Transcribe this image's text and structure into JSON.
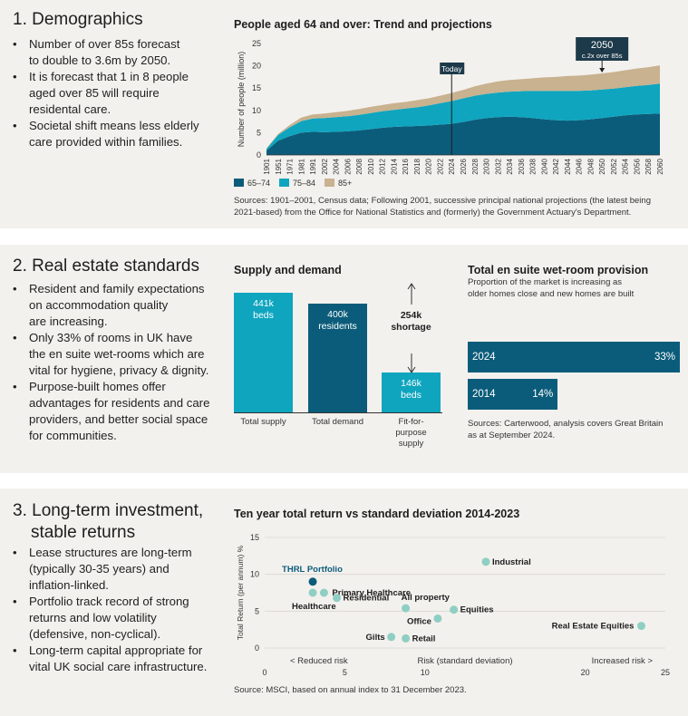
{
  "section1": {
    "title": "1. Demographics",
    "bullets": [
      "Number of over 85s forecast to double to 3.6m by 2050.",
      "It is forecast that 1 in 8 people aged over 85 will require residental care.",
      "Societal shift means less elderly care provided within families."
    ],
    "bullet_lines": [
      [
        "Number of over 85s forecast",
        "to double to 3.6m by 2050."
      ],
      [
        "It is forecast that 1 in 8 people",
        "aged over 85 will require",
        "residental care."
      ],
      [
        "Societal shift means less elderly",
        "care provided within families."
      ]
    ],
    "source": "Sources: 1901–2001, Census data; Following 2001, successive principal national projections (the latest being 2021-based) from the Office for National Statistics and (formerly) the Government Actuary's Department.",
    "source_lines": [
      "Sources: 1901–2001, Census data; Following 2001, successive principal national projections (the latest being",
      "2021-based) from the Office for National Statistics and (formerly) the Government Actuary's Department."
    ]
  },
  "section2": {
    "title": "2. Real estate standards",
    "bullets": [
      "Resident and family expectations on accommodation quality are increasing.",
      "Only 33% of rooms in UK have the en suite wet-rooms which are vital for hygiene, privacy & dignity.",
      "Purpose-built homes offer advantages for residents and care providers, and better social space for communities."
    ],
    "bullet_lines": [
      [
        "Resident and family expectations",
        "on accommodation quality",
        "are increasing."
      ],
      [
        "Only 33% of rooms in UK have",
        "the en suite wet-rooms which are",
        "vital for hygiene, privacy & dignity."
      ],
      [
        "Purpose-built homes offer",
        "advantages for residents and care",
        "providers, and better social space",
        "for communities."
      ]
    ]
  },
  "section3": {
    "title_lines": [
      "3. Long-term investment,",
      "stable returns"
    ],
    "bullets": [
      "Lease structures are long-term (typically 30-35 years) and inflation-linked.",
      "Portfolio track record of strong returns and low volatility (defensive, non-cyclical).",
      "Long-term capital appropriate for vital UK social care infrastructure."
    ],
    "bullet_lines": [
      [
        "Lease structures are long-term",
        "(typically 30-35 years) and",
        "inflation-linked."
      ],
      [
        "Portfolio track record of strong",
        "returns and low volatility",
        "(defensive, non-cyclical)."
      ],
      [
        "Long-term capital appropriate for",
        "vital UK social care infrastructure."
      ]
    ],
    "source": "Source: MSCI, based on annual index to 31 December 2023."
  },
  "colors": {
    "dark_teal": "#0b5c7a",
    "teal": "#0fa5bf",
    "tan": "#c8b28f",
    "mint": "#8fcfc3",
    "panel_bg": "#f3f1ee"
  },
  "chart_data": [
    {
      "type": "area",
      "title": "People aged 64 and over: Trend and projections",
      "ylabel": "Number of people (million)",
      "ylim": [
        0,
        25
      ],
      "yticks": [
        0,
        5,
        10,
        15,
        20,
        25
      ],
      "x": [
        "1901",
        "1951",
        "1971",
        "1981",
        "1991",
        "2002",
        "2004",
        "2006",
        "2008",
        "2010",
        "2012",
        "2014",
        "2016",
        "2018",
        "2020",
        "2022",
        "2024",
        "2026",
        "2028",
        "2030",
        "2032",
        "2034",
        "2036",
        "2038",
        "2040",
        "2042",
        "2044",
        "2046",
        "2048",
        "2050",
        "2052",
        "2054",
        "2056",
        "2058",
        "2060"
      ],
      "series": [
        {
          "name": "65–74",
          "values": [
            1.0,
            3.2,
            4.2,
            5.0,
            5.2,
            5.1,
            5.2,
            5.3,
            5.5,
            5.8,
            6.1,
            6.3,
            6.4,
            6.5,
            6.6,
            6.8,
            7.0,
            7.4,
            7.9,
            8.3,
            8.5,
            8.6,
            8.5,
            8.3,
            8.0,
            7.8,
            7.7,
            7.8,
            8.0,
            8.3,
            8.6,
            8.9,
            9.1,
            9.2,
            9.3
          ]
        },
        {
          "name": "75–84",
          "values": [
            0.4,
            1.3,
            2.0,
            2.6,
            3.0,
            3.2,
            3.3,
            3.4,
            3.5,
            3.6,
            3.7,
            3.8,
            4.0,
            4.2,
            4.5,
            4.8,
            5.1,
            5.3,
            5.4,
            5.4,
            5.5,
            5.6,
            5.8,
            6.1,
            6.4,
            6.6,
            6.7,
            6.6,
            6.5,
            6.4,
            6.3,
            6.3,
            6.4,
            6.5,
            6.7
          ]
        },
        {
          "name": "85+",
          "values": [
            0.1,
            0.2,
            0.5,
            0.8,
            0.9,
            1.0,
            1.1,
            1.2,
            1.3,
            1.4,
            1.4,
            1.5,
            1.5,
            1.6,
            1.6,
            1.7,
            1.8,
            1.9,
            2.1,
            2.3,
            2.5,
            2.6,
            2.7,
            2.8,
            3.0,
            3.1,
            3.3,
            3.4,
            3.5,
            3.6,
            3.7,
            3.8,
            3.9,
            4.0,
            4.1
          ]
        }
      ],
      "annotations": [
        {
          "x": "2024",
          "label": "Today"
        },
        {
          "x": "2050",
          "label": "2050",
          "sublabel": "c.2x over 85s"
        }
      ],
      "legend": "bottom-left"
    },
    {
      "type": "bar",
      "title": "Supply and demand",
      "categories": [
        "Total supply",
        "Total demand",
        "Fit-for-purpose supply"
      ],
      "category_lines": [
        [
          "Total supply"
        ],
        [
          "Total demand"
        ],
        [
          "Fit-for-",
          "purpose",
          "supply"
        ]
      ],
      "values": [
        441,
        400,
        146
      ],
      "value_units": "thousand",
      "value_labels": [
        [
          "441k",
          "beds"
        ],
        [
          "400k",
          "residents"
        ],
        [
          "146k",
          "beds"
        ]
      ],
      "bar_colors": [
        "#0fa5bf",
        "#0b5c7a",
        "#0fa5bf"
      ],
      "annotation": {
        "label_lines": [
          "254k",
          "shortage"
        ]
      }
    },
    {
      "type": "bar",
      "orientation": "horizontal",
      "title": "Total en suite wet-room provision",
      "subtitle_lines": [
        "Proportion of the market is increasing as",
        "older homes close and new homes are built"
      ],
      "categories": [
        "2024",
        "2014"
      ],
      "values": [
        33,
        14
      ],
      "value_labels": [
        "33%",
        "14%"
      ],
      "source_lines": [
        "Sources: Carterwood, analysis covers Great Britain",
        "as at September 2024."
      ]
    },
    {
      "type": "scatter",
      "title": "Ten year total return vs standard deviation 2014-2023",
      "ylabel": "Total Return (per annum) %",
      "xlabel": "Risk (standard deviation)",
      "xlim": [
        0,
        25
      ],
      "ylim": [
        0,
        15
      ],
      "xticks": [
        0,
        5,
        10,
        20,
        25
      ],
      "yticks": [
        0,
        5,
        10,
        15
      ],
      "x_annotations": [
        "< Reduced risk",
        "Increased risk >"
      ],
      "points": [
        {
          "name": "THRL Portfolio",
          "x": 3.0,
          "y": 9.0,
          "highlight": true
        },
        {
          "name": "Primary Healthcare",
          "x": 3.7,
          "y": 7.5
        },
        {
          "name": "Healthcare",
          "x": 3.0,
          "y": 7.5
        },
        {
          "name": "Residential",
          "x": 4.5,
          "y": 6.8
        },
        {
          "name": "Industrial",
          "x": 13.8,
          "y": 11.7
        },
        {
          "name": "All property",
          "x": 8.8,
          "y": 5.4
        },
        {
          "name": "Equities",
          "x": 11.8,
          "y": 5.2
        },
        {
          "name": "Office",
          "x": 10.8,
          "y": 4.0
        },
        {
          "name": "Gilts",
          "x": 7.9,
          "y": 1.5
        },
        {
          "name": "Retail",
          "x": 8.8,
          "y": 1.3
        },
        {
          "name": "Real Estate Equities",
          "x": 23.5,
          "y": 3.0
        }
      ]
    }
  ]
}
